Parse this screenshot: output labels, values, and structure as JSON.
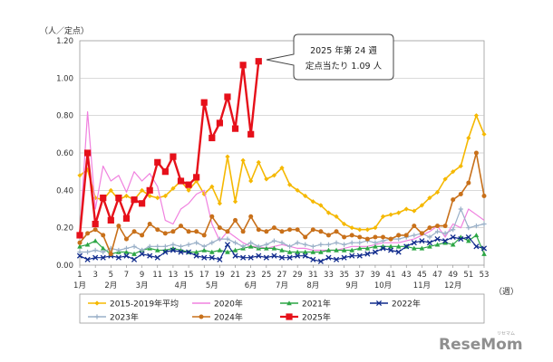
{
  "chart_data": {
    "type": "line",
    "ylabel": "（人／定点）",
    "xlabel": "（週）",
    "ylim": [
      0,
      1.2
    ],
    "yticks": [
      "0.00",
      "0.20",
      "0.40",
      "0.60",
      "0.80",
      "1.00",
      "1.20"
    ],
    "xlim": [
      1,
      53
    ],
    "x_week_ticks": [
      "1",
      "3",
      "5",
      "7",
      "9",
      "11",
      "13",
      "15",
      "17",
      "19",
      "21",
      "23",
      "25",
      "27",
      "29",
      "31",
      "33",
      "35",
      "37",
      "39",
      "41",
      "43",
      "45",
      "47",
      "49",
      "51",
      "53"
    ],
    "month_labels": [
      "1月",
      "2月",
      "3月",
      "4月",
      "5月",
      "6月",
      "7月",
      "8月",
      "9月",
      "10月",
      "11月",
      "12月"
    ],
    "grid": true,
    "legend": "bottom",
    "series": [
      {
        "name": "2015-2019年平均",
        "color": "#F5B800",
        "marker": "diamond",
        "values": [
          0.48,
          0.51,
          0.36,
          0.35,
          0.4,
          0.35,
          0.37,
          0.35,
          0.4,
          0.37,
          0.36,
          0.37,
          0.41,
          0.45,
          0.4,
          0.45,
          0.38,
          0.42,
          0.33,
          0.58,
          0.34,
          0.56,
          0.45,
          0.55,
          0.46,
          0.48,
          0.52,
          0.43,
          0.4,
          0.37,
          0.34,
          0.32,
          0.28,
          0.26,
          0.22,
          0.2,
          0.19,
          0.19,
          0.2,
          0.26,
          0.27,
          0.28,
          0.3,
          0.29,
          0.32,
          0.36,
          0.39,
          0.46,
          0.5,
          0.53,
          0.68,
          0.8,
          0.7
        ]
      },
      {
        "name": "2020年",
        "color": "#F080DF",
        "marker": "none",
        "values": [
          0.16,
          0.82,
          0.3,
          0.53,
          0.45,
          0.48,
          0.39,
          0.5,
          0.45,
          0.49,
          0.42,
          0.24,
          0.22,
          0.3,
          0.33,
          0.38,
          0.4,
          0.22,
          0.13,
          0.18,
          0.15,
          0.12,
          0.1,
          0.1,
          0.09,
          0.1,
          0.11,
          0.1,
          0.09,
          0.09,
          0.08,
          0.08,
          0.08,
          0.08,
          0.09,
          0.1,
          0.1,
          0.1,
          0.11,
          0.12,
          0.12,
          0.12,
          0.13,
          0.14,
          0.16,
          0.18,
          0.21,
          0.15,
          0.22,
          0.2,
          0.3,
          0.27,
          0.24
        ]
      },
      {
        "name": "2021年",
        "color": "#2CA645",
        "marker": "triangle",
        "values": [
          0.1,
          0.11,
          0.13,
          0.09,
          0.06,
          0.07,
          0.07,
          0.06,
          0.08,
          0.09,
          0.08,
          0.08,
          0.09,
          0.08,
          0.07,
          0.07,
          0.08,
          0.07,
          0.08,
          0.07,
          0.08,
          0.09,
          0.1,
          0.09,
          0.09,
          0.09,
          0.08,
          0.07,
          0.07,
          0.07,
          0.07,
          0.07,
          0.08,
          0.08,
          0.08,
          0.08,
          0.09,
          0.09,
          0.1,
          0.1,
          0.1,
          0.1,
          0.1,
          0.09,
          0.09,
          0.1,
          0.11,
          0.12,
          0.11,
          0.15,
          0.13,
          0.16,
          0.06
        ]
      },
      {
        "name": "2022年",
        "color": "#0F2A8C",
        "marker": "x",
        "values": [
          0.05,
          0.03,
          0.04,
          0.04,
          0.05,
          0.04,
          0.05,
          0.03,
          0.06,
          0.05,
          0.04,
          0.07,
          0.08,
          0.07,
          0.07,
          0.05,
          0.04,
          0.04,
          0.03,
          0.11,
          0.05,
          0.04,
          0.04,
          0.05,
          0.04,
          0.05,
          0.04,
          0.04,
          0.05,
          0.05,
          0.03,
          0.02,
          0.04,
          0.03,
          0.04,
          0.05,
          0.05,
          0.06,
          0.07,
          0.09,
          0.08,
          0.07,
          0.1,
          0.12,
          0.13,
          0.12,
          0.14,
          0.13,
          0.15,
          0.14,
          0.15,
          0.1,
          0.09
        ]
      },
      {
        "name": "2023年",
        "color": "#9AB0C8",
        "marker": "plus",
        "values": [
          0.07,
          0.07,
          0.08,
          0.07,
          0.09,
          0.08,
          0.09,
          0.1,
          0.08,
          0.1,
          0.1,
          0.1,
          0.11,
          0.1,
          0.11,
          0.12,
          0.1,
          0.12,
          0.14,
          0.14,
          0.12,
          0.1,
          0.12,
          0.1,
          0.11,
          0.13,
          0.12,
          0.1,
          0.12,
          0.11,
          0.1,
          0.11,
          0.11,
          0.12,
          0.11,
          0.12,
          0.12,
          0.13,
          0.12,
          0.13,
          0.14,
          0.14,
          0.15,
          0.16,
          0.17,
          0.15,
          0.18,
          0.17,
          0.19,
          0.3,
          0.2,
          0.21,
          0.22
        ]
      },
      {
        "name": "2024年",
        "color": "#C8701A",
        "marker": "circle",
        "values": [
          0.12,
          0.17,
          0.19,
          0.16,
          0.06,
          0.21,
          0.14,
          0.18,
          0.16,
          0.22,
          0.19,
          0.17,
          0.18,
          0.21,
          0.18,
          0.18,
          0.16,
          0.26,
          0.2,
          0.18,
          0.24,
          0.18,
          0.26,
          0.19,
          0.18,
          0.2,
          0.18,
          0.19,
          0.19,
          0.15,
          0.19,
          0.18,
          0.16,
          0.18,
          0.15,
          0.16,
          0.15,
          0.14,
          0.15,
          0.15,
          0.14,
          0.16,
          0.16,
          0.21,
          0.17,
          0.2,
          0.21,
          0.21,
          0.35,
          0.38,
          0.44,
          0.6,
          0.37
        ]
      },
      {
        "name": "2025年",
        "color": "#E6101A",
        "marker": "square",
        "values": [
          0.16,
          0.6,
          0.22,
          0.36,
          0.24,
          0.36,
          0.25,
          0.35,
          0.33,
          0.4,
          0.55,
          0.5,
          0.58,
          0.45,
          0.43,
          0.47,
          0.87,
          0.68,
          0.76,
          0.9,
          0.73,
          1.07,
          0.7,
          1.09
        ]
      }
    ],
    "annotation": {
      "lines": [
        "2025 年第 24 週",
        "定点当たり 1.09 人"
      ],
      "target_series": "2025年",
      "target_week": 24
    }
  },
  "watermark": "ReseMom"
}
